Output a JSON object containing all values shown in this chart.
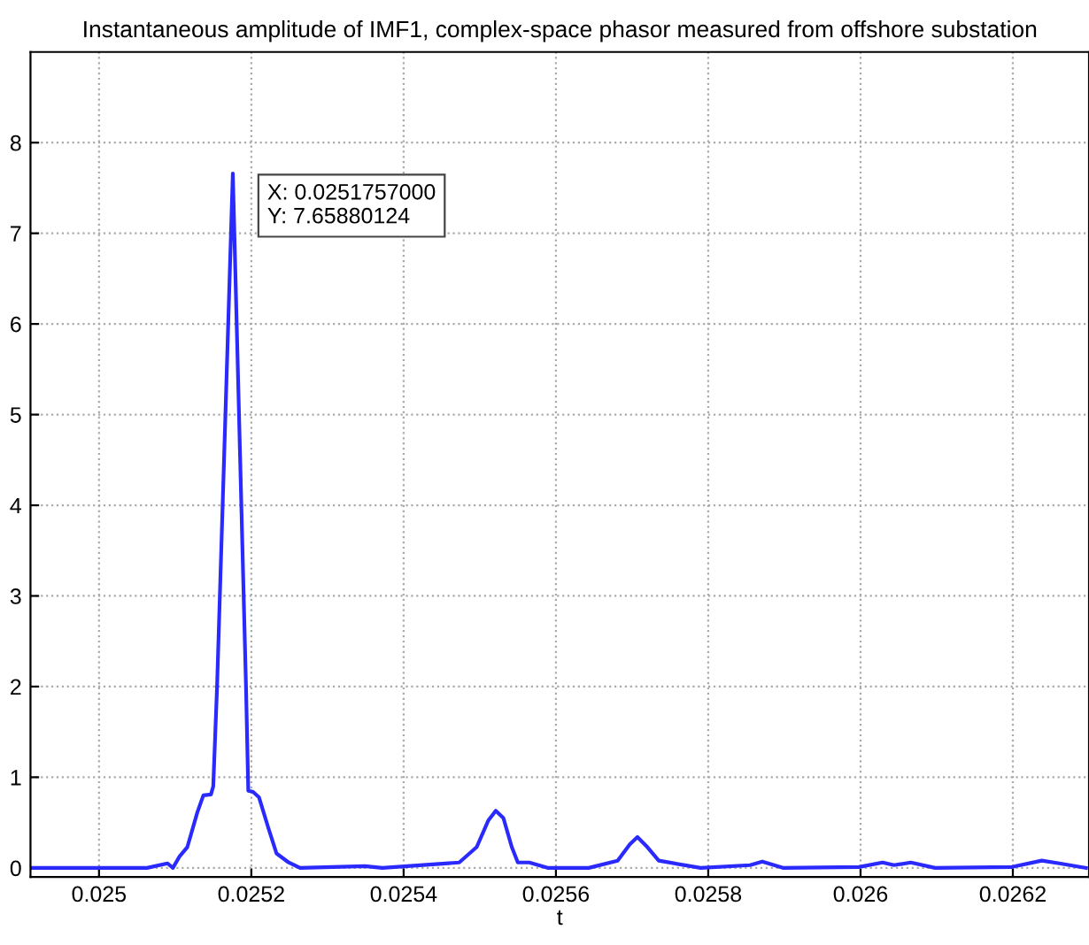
{
  "chart_data": {
    "type": "line",
    "title": "Instantaneous amplitude of IMF1, complex-space phasor measured from offshore substation",
    "xlabel": "t",
    "series": [
      {
        "color": "#2a2aff",
        "x": [
          0.02491,
          0.025063,
          0.02509,
          0.025097,
          0.025106,
          0.025116,
          0.025129,
          0.025137,
          0.025147,
          0.02515,
          0.025155,
          0.0251757,
          0.025193,
          0.025196,
          0.025202,
          0.02521,
          0.025222,
          0.025233,
          0.025249,
          0.025264,
          0.025349,
          0.025372,
          0.025473,
          0.025496,
          0.025511,
          0.025521,
          0.025531,
          0.025542,
          0.02555,
          0.025565,
          0.025589,
          0.025643,
          0.025681,
          0.025697,
          0.025707,
          0.02572,
          0.025735,
          0.02579,
          0.025855,
          0.025871,
          0.025898,
          0.025998,
          0.026029,
          0.026044,
          0.026066,
          0.026098,
          0.026199,
          0.026238,
          0.026261,
          0.026296
        ],
        "values": [
          0,
          0,
          0.05,
          0,
          0.13,
          0.23,
          0.61,
          0.8,
          0.81,
          0.9,
          2,
          7.6588,
          2,
          0.85,
          0.84,
          0.78,
          0.45,
          0.16,
          0.06,
          0,
          0.02,
          0,
          0.06,
          0.23,
          0.52,
          0.63,
          0.55,
          0.23,
          0.06,
          0.06,
          0,
          0,
          0.08,
          0.26,
          0.34,
          0.23,
          0.08,
          0,
          0.03,
          0.07,
          0,
          0.01,
          0.06,
          0.03,
          0.06,
          0,
          0.01,
          0.08,
          0.05,
          0
        ]
      }
    ],
    "xlim": [
      0.02491,
      0.0263
    ],
    "ylim": [
      -0.1,
      9
    ],
    "xticks": [
      0.025,
      0.0252,
      0.0254,
      0.0256,
      0.0258,
      0.026,
      0.0262
    ],
    "yticks": [
      0,
      1,
      2,
      3,
      4,
      5,
      6,
      7,
      8
    ],
    "grid": true,
    "marker": "none",
    "line_style": "solid",
    "annotations": [
      {
        "text": "X: 0.0251757000\nY: 7.65880124",
        "x": 0.0251757,
        "y": 7.6588
      }
    ]
  }
}
